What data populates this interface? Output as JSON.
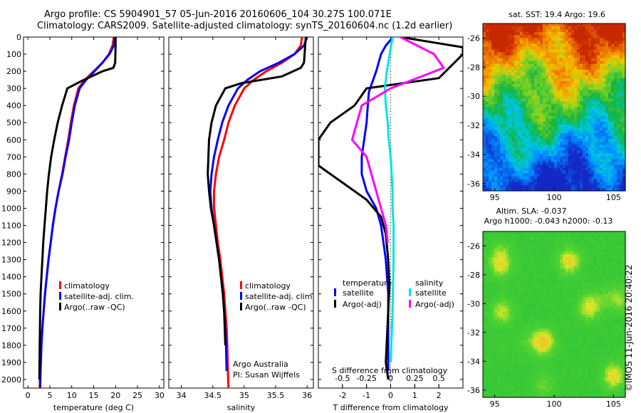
{
  "header": {
    "title_line1": "Argo profile: CS 5904901_57 05-Jun-2016 20160606_104 30.27S 100.071E",
    "title_line2": "Climatology: CARS2009. Satellite-adjusted climatology: synTS_20160604.nc (1.2d earlier)"
  },
  "side_label": "©IMOS 11-Jun-2016 20:40:22",
  "colors": {
    "climatology": "#ff0000",
    "satellite": "#0000ff",
    "argo": "#000000",
    "salinity_satellite": "#00e5e5",
    "salinity_argo": "#ff00ff"
  },
  "chart_data": [
    {
      "type": "line",
      "xlabel": "temperature (deg C)",
      "ylabel": "",
      "xlim": [
        -1,
        31
      ],
      "ylim": [
        2050,
        0
      ],
      "xticks": [
        "0",
        "5",
        "10",
        "15",
        "20",
        "25",
        "30"
      ],
      "yticks": [
        "0",
        "100",
        "200",
        "300",
        "400",
        "500",
        "600",
        "700",
        "800",
        "900",
        "1000",
        "1100",
        "1200",
        "1300",
        "1400",
        "1500",
        "1600",
        "1700",
        "1800",
        "1900",
        "2000"
      ],
      "legend": [
        "climatology",
        "satellite-adj. clim.",
        "Argo(..raw -QC)"
      ],
      "series": [
        {
          "name": "climatology",
          "color": "#ff0000",
          "x": [
            19.6,
            19.3,
            18.5,
            17.0,
            15.0,
            13.0,
            11.5,
            10.5,
            9.8,
            9.2,
            8.5,
            7.8,
            7.0,
            6.3,
            5.7,
            5.2,
            4.7,
            4.3,
            3.9,
            3.6,
            3.3,
            3.0,
            2.8,
            2.7
          ],
          "y": [
            0,
            50,
            100,
            150,
            200,
            250,
            300,
            400,
            500,
            600,
            700,
            800,
            900,
            1000,
            1100,
            1200,
            1300,
            1400,
            1500,
            1600,
            1700,
            1800,
            1950,
            2050
          ]
        },
        {
          "name": "satellite-adj. clim.",
          "color": "#0000ff",
          "x": [
            19.8,
            19.6,
            18.6,
            17.0,
            15.2,
            13.3,
            11.8,
            10.7,
            10.0,
            9.4,
            8.6,
            7.9,
            7.0,
            6.3,
            5.7,
            5.2,
            4.7,
            4.3,
            3.9,
            3.6,
            3.3,
            3.1,
            2.9,
            2.8
          ],
          "y": [
            0,
            50,
            100,
            150,
            200,
            250,
            300,
            400,
            500,
            600,
            700,
            800,
            900,
            1000,
            1100,
            1200,
            1300,
            1400,
            1500,
            1600,
            1700,
            1800,
            1950,
            2050
          ]
        },
        {
          "name": "Argo(..raw -QC)",
          "color": "#000000",
          "x": [
            20.0,
            20.0,
            19.9,
            19.5,
            17.0,
            12.0,
            9.0,
            7.8,
            6.8,
            6.0,
            5.3,
            4.8,
            4.4,
            4.1,
            3.8,
            3.5,
            3.3,
            3.1,
            2.9,
            2.8,
            2.7,
            2.6
          ],
          "y": [
            0,
            50,
            150,
            180,
            200,
            260,
            300,
            400,
            500,
            600,
            700,
            800,
            900,
            1000,
            1100,
            1200,
            1300,
            1400,
            1500,
            1600,
            1800,
            2000
          ]
        }
      ]
    },
    {
      "type": "line",
      "xlabel": "salinity",
      "ylabel": "",
      "xlim": [
        33.8,
        36.1
      ],
      "ylim": [
        2050,
        0
      ],
      "xticks": [
        "34",
        "34.5",
        "35",
        "35.5",
        "36"
      ],
      "legend": [
        "climatology",
        "satellite-adj. clim.",
        "Argo(..raw -QC)"
      ],
      "annotations": [
        "Argo Australia",
        "PI: Susan Wijffels"
      ],
      "series": [
        {
          "name": "climatology",
          "color": "#ff0000",
          "x": [
            35.92,
            35.9,
            35.8,
            35.6,
            35.35,
            35.15,
            35.0,
            34.85,
            34.75,
            34.68,
            34.6,
            34.55,
            34.52,
            34.52,
            34.55,
            34.58,
            34.62,
            34.65,
            34.68,
            34.7,
            34.72,
            34.73,
            34.74,
            34.75
          ],
          "y": [
            0,
            50,
            100,
            150,
            200,
            250,
            300,
            400,
            500,
            600,
            700,
            800,
            900,
            1000,
            1100,
            1200,
            1300,
            1400,
            1500,
            1600,
            1700,
            1800,
            1950,
            2050
          ]
        },
        {
          "name": "satellite-adj. clim.",
          "color": "#0000ff",
          "x": [
            36.0,
            35.95,
            35.8,
            35.55,
            35.25,
            35.05,
            34.9,
            34.75,
            34.65,
            34.58,
            34.52,
            34.48,
            34.46,
            34.48,
            34.52,
            34.56,
            34.6,
            34.63,
            34.66,
            34.68,
            34.7,
            34.71,
            34.72
          ],
          "y": [
            0,
            50,
            100,
            150,
            200,
            250,
            300,
            400,
            500,
            600,
            700,
            800,
            900,
            1000,
            1100,
            1200,
            1300,
            1400,
            1500,
            1600,
            1700,
            1800,
            1950
          ]
        },
        {
          "name": "Argo(..raw -QC)",
          "color": "#000000",
          "x": [
            35.98,
            35.97,
            35.95,
            35.9,
            35.6,
            34.95,
            34.7,
            34.55,
            34.48,
            34.44,
            34.43,
            34.42,
            34.44,
            34.47,
            34.52,
            34.56,
            34.6,
            34.63,
            34.66,
            34.68,
            34.7
          ],
          "y": [
            0,
            50,
            150,
            180,
            230,
            270,
            300,
            400,
            500,
            600,
            700,
            800,
            900,
            1000,
            1100,
            1200,
            1300,
            1400,
            1500,
            1600,
            1800
          ]
        }
      ]
    },
    {
      "type": "line",
      "xlabel": "T difference from climatology",
      "x2label": "S difference from climatology",
      "xlim": [
        -3,
        3
      ],
      "ylim": [
        2050,
        0
      ],
      "xticks": [
        "-2",
        "-1",
        "0",
        "1",
        "2"
      ],
      "x2ticks": [
        "-0.5",
        "-0.25",
        "0",
        "0.25",
        "0.5"
      ],
      "legend_temperature": [
        "temperature",
        "satellite",
        "Argo(-adj)"
      ],
      "legend_salinity": [
        "salinity",
        "satellite",
        "Argo(-adj)"
      ],
      "series": [
        {
          "name": "satellite",
          "color": "#0000ff",
          "x": [
            0.1,
            -0.2,
            -0.4,
            -0.6,
            -0.8,
            -0.9,
            -0.95,
            -1.0,
            -1.1,
            -1.2,
            -1.2,
            -1.0,
            -0.6,
            -0.4,
            -0.3,
            -0.2,
            -0.15,
            -0.1,
            -0.1,
            -0.1,
            -0.1,
            -0.1
          ],
          "y": [
            0,
            50,
            100,
            200,
            280,
            320,
            400,
            500,
            600,
            700,
            800,
            900,
            1000,
            1100,
            1200,
            1300,
            1400,
            1500,
            1600,
            1700,
            1800,
            1950
          ]
        },
        {
          "name": "Argo(-adj)",
          "color": "#000000",
          "x": [
            0.4,
            3.0,
            3.0,
            2.0,
            -1.0,
            -1.5,
            -2.5,
            -3.0,
            -3.0,
            -3.0,
            -2.0,
            -1.0,
            -0.4,
            -0.2,
            -0.1,
            -0.05,
            -0.1,
            -0.15,
            -0.2,
            -0.1
          ],
          "y": [
            0,
            60,
            100,
            240,
            300,
            400,
            500,
            600,
            700,
            750,
            850,
            950,
            1050,
            1150,
            1300,
            1450,
            1600,
            1750,
            1900,
            2000
          ]
        },
        {
          "name": "satellite",
          "color": "#00e5e5",
          "x": [
            0.02,
            -0.01,
            -0.04,
            -0.06,
            -0.05,
            -0.03,
            -0.02,
            0.0,
            0.01,
            0.02,
            0.02,
            0.03,
            0.03,
            0.02,
            0.0
          ],
          "y": [
            0,
            100,
            200,
            300,
            400,
            500,
            600,
            700,
            800,
            900,
            1000,
            1100,
            1300,
            1600,
            1900
          ]
        },
        {
          "name": "Argo(-adj)",
          "color": "#ff00ff",
          "x": [
            0.1,
            0.45,
            0.55,
            0.0,
            -0.3,
            -0.4,
            -0.25,
            -0.2,
            -0.15,
            -0.1,
            -0.05,
            -0.03
          ],
          "y": [
            0,
            100,
            180,
            300,
            400,
            600,
            700,
            800,
            900,
            1000,
            1100,
            1200
          ]
        }
      ]
    },
    {
      "type": "heatmap",
      "title": "sat. SST: 19.4 Argo: 19.6",
      "xlim": [
        94,
        106
      ],
      "ylim": [
        -36.5,
        -25
      ],
      "xticks": [
        "95",
        "100",
        "105"
      ],
      "yticks": [
        "-26",
        "-28",
        "-30",
        "-32",
        "-34",
        "-36"
      ]
    },
    {
      "type": "heatmap",
      "title": "Altim. SLA: -0.037",
      "subtitle": "Argo h1000: -0.043 h2000: -0.13",
      "xlim": [
        94,
        106
      ],
      "ylim": [
        -36.5,
        -25
      ],
      "xticks": [
        "95",
        "100",
        "105"
      ],
      "yticks": [
        "-26",
        "-28",
        "-30",
        "-32",
        "-34",
        "-36"
      ]
    }
  ]
}
